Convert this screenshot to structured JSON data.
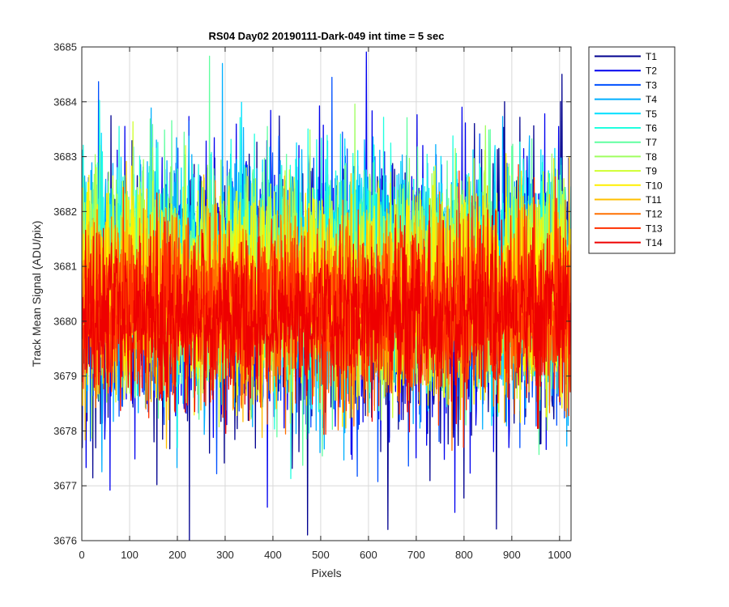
{
  "chart_data": {
    "type": "line",
    "title": "RS04 Day02 20190111-Dark-049 int time = 5 sec",
    "xlabel": "Pixels",
    "ylabel": "Track Mean Signal (ADU/pix)",
    "xlim": [
      0,
      1024
    ],
    "ylim": [
      3676,
      3685
    ],
    "xticks": [
      "0",
      "100",
      "200",
      "300",
      "400",
      "500",
      "600",
      "700",
      "800",
      "900",
      "1000"
    ],
    "yticks": [
      "3676",
      "3677",
      "3678",
      "3679",
      "3680",
      "3681",
      "3682",
      "3683",
      "3684",
      "3685"
    ],
    "grid": true,
    "legend_position": "outside-right",
    "points_per_series": 1024,
    "series": [
      {
        "name": "T1",
        "color": "#00008f",
        "mean": 3680.5,
        "std": 1.2
      },
      {
        "name": "T2",
        "color": "#0000ef",
        "mean": 3680.5,
        "std": 1.2
      },
      {
        "name": "T3",
        "color": "#0050ff",
        "mean": 3680.6,
        "std": 1.15
      },
      {
        "name": "T4",
        "color": "#00afff",
        "mean": 3680.6,
        "std": 1.1
      },
      {
        "name": "T5",
        "color": "#00dfff",
        "mean": 3680.9,
        "std": 1.0
      },
      {
        "name": "T6",
        "color": "#20ffdf",
        "mean": 3680.9,
        "std": 1.0
      },
      {
        "name": "T7",
        "color": "#60ffa0",
        "mean": 3680.8,
        "std": 0.95
      },
      {
        "name": "T8",
        "color": "#9fff60",
        "mean": 3680.7,
        "std": 0.95
      },
      {
        "name": "T9",
        "color": "#d0ff30",
        "mean": 3680.6,
        "std": 0.9
      },
      {
        "name": "T10",
        "color": "#ffef00",
        "mean": 3680.5,
        "std": 0.9
      },
      {
        "name": "T11",
        "color": "#ffbf00",
        "mean": 3680.4,
        "std": 0.85
      },
      {
        "name": "T12",
        "color": "#ff7000",
        "mean": 3680.3,
        "std": 0.8
      },
      {
        "name": "T13",
        "color": "#ff3000",
        "mean": 3680.2,
        "std": 0.8
      },
      {
        "name": "T14",
        "color": "#ee0000",
        "mean": 3680.1,
        "std": 0.75
      }
    ]
  }
}
